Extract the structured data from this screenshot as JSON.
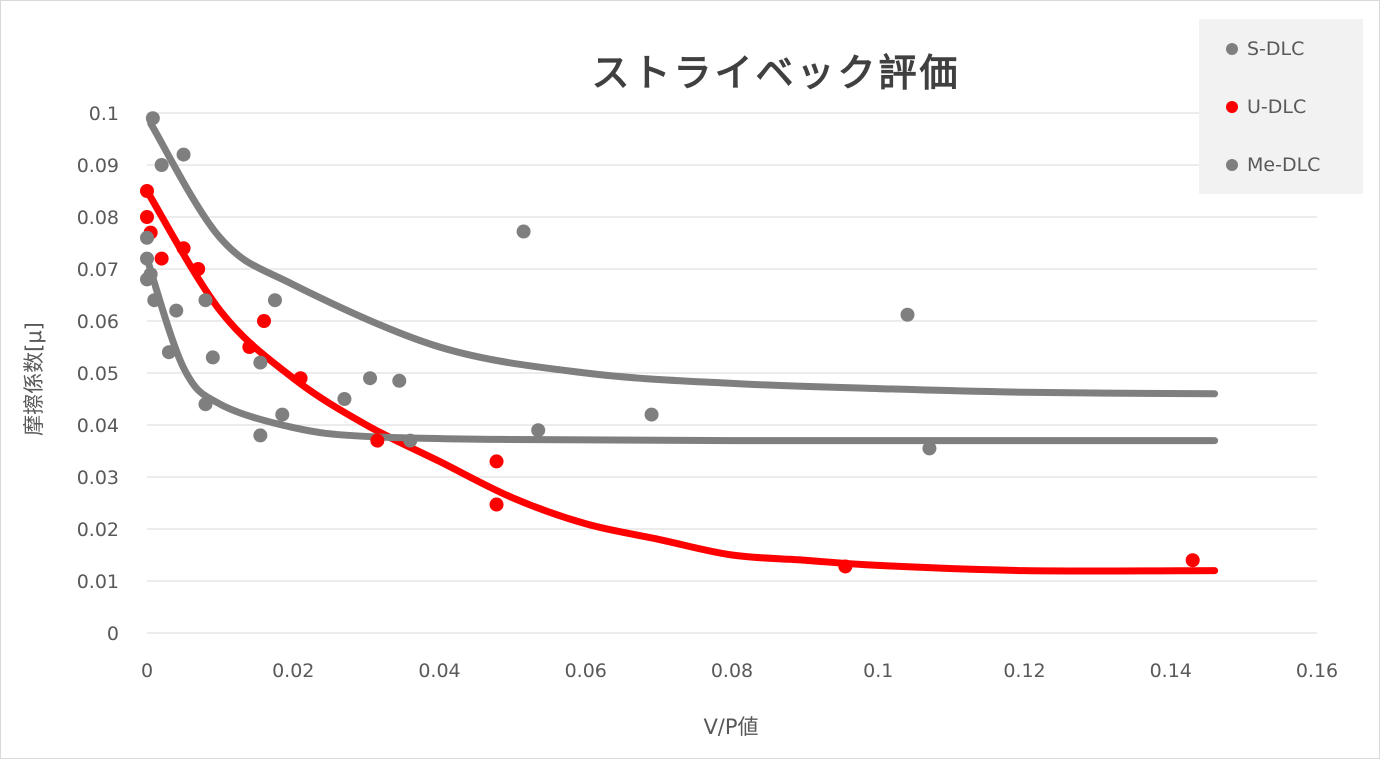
{
  "chart_data": {
    "type": "scatter",
    "title": "ストライベック評価",
    "xlabel": "V/P値",
    "ylabel": "摩擦係数[μ]",
    "xlim": [
      0,
      0.16
    ],
    "ylim": [
      0,
      0.1
    ],
    "x_ticks": [
      "0",
      "0.02",
      "0.04",
      "0.06",
      "0.08",
      "0.1",
      "0.12",
      "0.14",
      "0.16"
    ],
    "y_ticks": [
      "0",
      "0.01",
      "0.02",
      "0.03",
      "0.04",
      "0.05",
      "0.06",
      "0.07",
      "0.08",
      "0.09",
      "0.1"
    ],
    "grid": "horizontal",
    "legend_position": "top-right",
    "series": [
      {
        "name": "S-DLC",
        "color": "#7f7f7f",
        "points": [
          [
            0.0008,
            0.099
          ],
          [
            0.002,
            0.09
          ],
          [
            0.005,
            0.092
          ],
          [
            0.008,
            0.064
          ],
          [
            0.0175,
            0.064
          ],
          [
            0.0155,
            0.052
          ],
          [
            0.0345,
            0.0485
          ],
          [
            0.0515,
            0.0772
          ],
          [
            0.069,
            0.042
          ],
          [
            0.104,
            0.0612
          ],
          [
            0.107,
            0.0355
          ]
        ],
        "trend": [
          [
            0.0005,
            0.098
          ],
          [
            0.01,
            0.076
          ],
          [
            0.02,
            0.067
          ],
          [
            0.04,
            0.055
          ],
          [
            0.06,
            0.05
          ],
          [
            0.08,
            0.048
          ],
          [
            0.1,
            0.047
          ],
          [
            0.12,
            0.0463
          ],
          [
            0.146,
            0.046
          ]
        ]
      },
      {
        "name": "U-DLC",
        "color": "#ff0000",
        "points": [
          [
            0,
            0.085
          ],
          [
            0,
            0.08
          ],
          [
            0.0005,
            0.077
          ],
          [
            0.002,
            0.072
          ],
          [
            0.005,
            0.074
          ],
          [
            0.007,
            0.07
          ],
          [
            0.016,
            0.06
          ],
          [
            0.014,
            0.055
          ],
          [
            0.021,
            0.049
          ],
          [
            0.0315,
            0.037
          ],
          [
            0.0478,
            0.033
          ],
          [
            0.0478,
            0.0247
          ],
          [
            0.0955,
            0.0128
          ],
          [
            0.143,
            0.014
          ]
        ],
        "trend": [
          [
            0,
            0.085
          ],
          [
            0.01,
            0.062
          ],
          [
            0.02,
            0.049
          ],
          [
            0.03,
            0.04
          ],
          [
            0.04,
            0.033
          ],
          [
            0.05,
            0.026
          ],
          [
            0.06,
            0.021
          ],
          [
            0.07,
            0.018
          ],
          [
            0.08,
            0.015
          ],
          [
            0.09,
            0.014
          ],
          [
            0.1,
            0.013
          ],
          [
            0.12,
            0.012
          ],
          [
            0.146,
            0.012
          ]
        ]
      },
      {
        "name": "Me-DLC",
        "color": "#7f7f7f",
        "points": [
          [
            0,
            0.076
          ],
          [
            0,
            0.072
          ],
          [
            0,
            0.068
          ],
          [
            0.0005,
            0.069
          ],
          [
            0.001,
            0.064
          ],
          [
            0.003,
            0.054
          ],
          [
            0.004,
            0.062
          ],
          [
            0.009,
            0.053
          ],
          [
            0.008,
            0.044
          ],
          [
            0.0155,
            0.038
          ],
          [
            0.0185,
            0.042
          ],
          [
            0.027,
            0.045
          ],
          [
            0.0305,
            0.049
          ],
          [
            0.036,
            0.037
          ],
          [
            0.0535,
            0.039
          ]
        ],
        "trend": [
          [
            0,
            0.072
          ],
          [
            0.005,
            0.051
          ],
          [
            0.01,
            0.044
          ],
          [
            0.02,
            0.0395
          ],
          [
            0.03,
            0.0378
          ],
          [
            0.05,
            0.0372
          ],
          [
            0.08,
            0.037
          ],
          [
            0.12,
            0.037
          ],
          [
            0.146,
            0.037
          ]
        ]
      }
    ]
  }
}
